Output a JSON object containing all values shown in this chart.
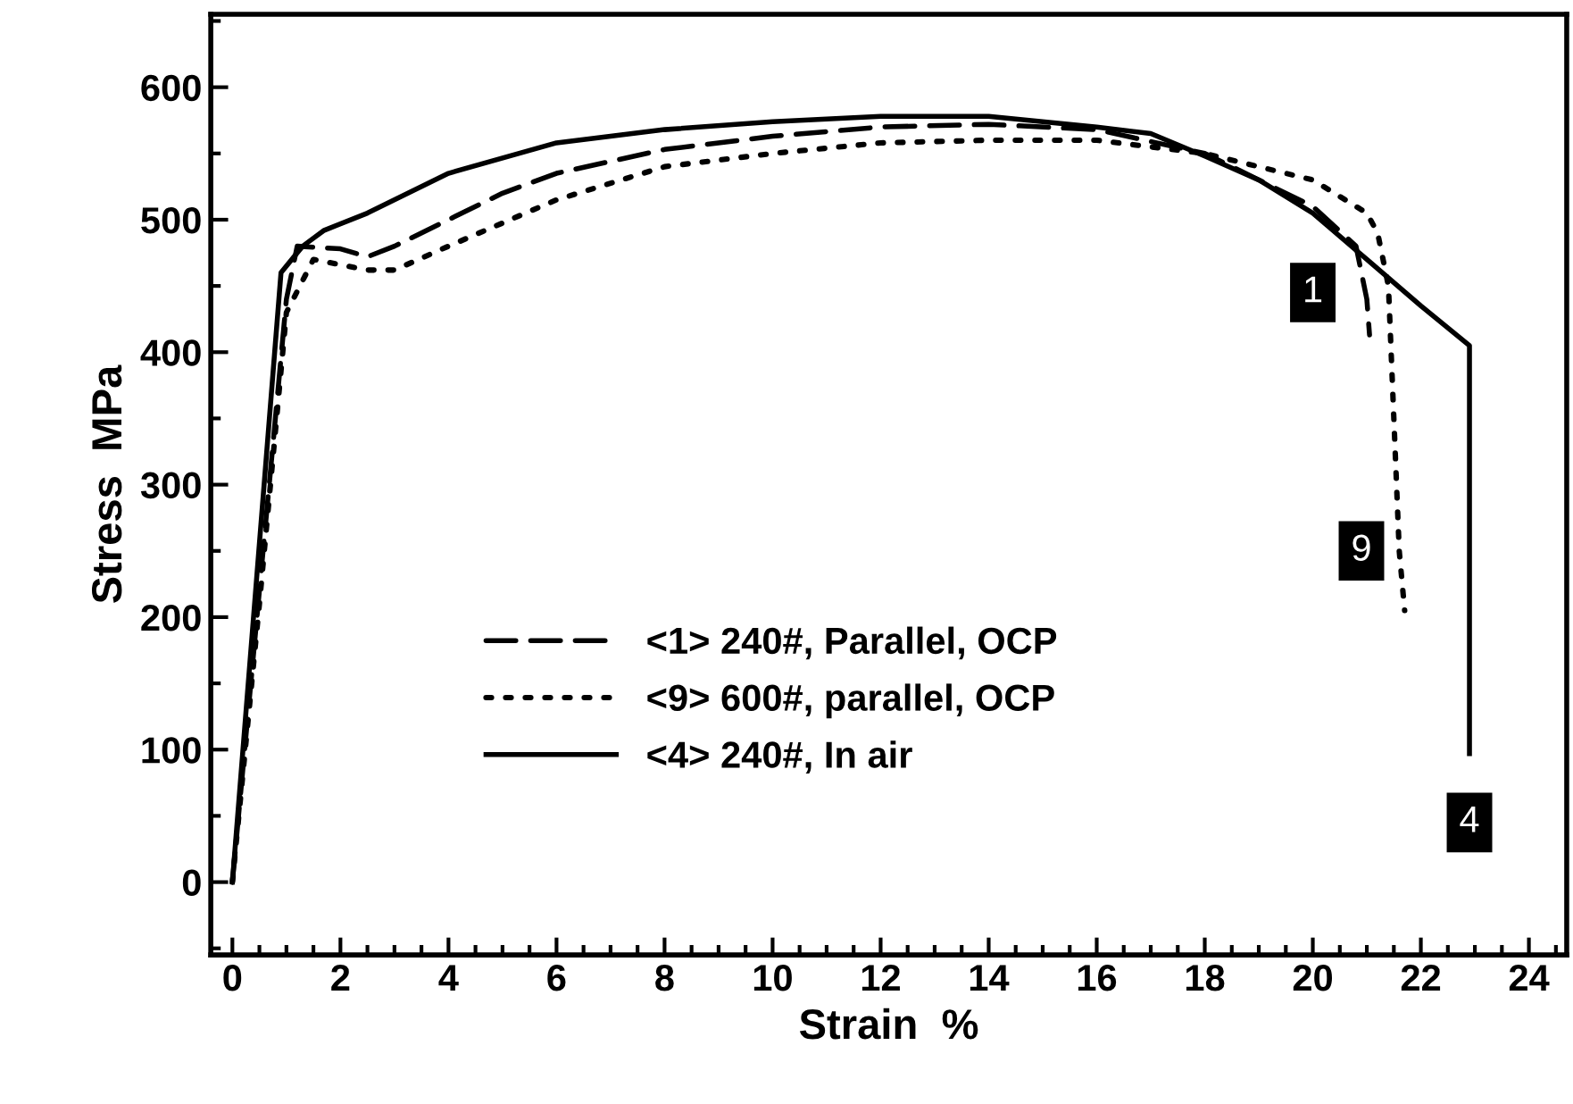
{
  "chart_data": {
    "type": "line",
    "xlabel": "Strain  %",
    "ylabel": "Stress  MPa",
    "xlim": [
      -0.4,
      24.7
    ],
    "xticks": [
      0,
      2,
      4,
      6,
      8,
      10,
      12,
      14,
      16,
      18,
      20,
      22,
      24
    ],
    "ylim": [
      -55,
      655
    ],
    "yticks": [
      0,
      100,
      200,
      300,
      400,
      500,
      600
    ],
    "grid": false,
    "legend": "center left",
    "marker": "none",
    "series": [
      {
        "name": "<1> 240#, Parallel, OCP",
        "color": "#000000",
        "line_style": "dashed",
        "x": [
          0,
          0.5,
          1,
          1.2,
          2,
          2.5,
          3,
          4,
          5,
          6,
          8,
          10,
          12,
          14,
          16,
          18,
          20,
          20.8,
          21,
          21.05
        ],
        "values": [
          0,
          220,
          440,
          480,
          478,
          472,
          480,
          500,
          520,
          535,
          553,
          563,
          570,
          572,
          568,
          550,
          510,
          480,
          440,
          413
        ]
      },
      {
        "name": "<9> 600#, parallel, OCP",
        "color": "#000000",
        "line_style": "dotted",
        "x": [
          0,
          0.5,
          1,
          1.5,
          2.5,
          3,
          4,
          6,
          8,
          10,
          12,
          14,
          16,
          18,
          19,
          20,
          21,
          21.2,
          21.4,
          21.5,
          21.6,
          21.7
        ],
        "values": [
          0,
          210,
          430,
          470,
          462,
          462,
          480,
          515,
          540,
          550,
          558,
          560,
          560,
          550,
          540,
          530,
          505,
          490,
          450,
          350,
          250,
          205
        ]
      },
      {
        "name": "<4> 240#, In air",
        "color": "#000000",
        "line_style": "solid",
        "x": [
          0,
          0.9,
          1.3,
          1.7,
          2.5,
          4,
          6,
          8,
          10,
          12,
          14,
          16,
          17,
          18,
          19,
          20,
          21,
          22,
          22.9,
          22.9
        ],
        "values": [
          0,
          460,
          480,
          492,
          505,
          535,
          558,
          568,
          574,
          578,
          578,
          570,
          565,
          548,
          530,
          505,
          470,
          435,
          405,
          97
        ]
      }
    ],
    "annotations": [
      {
        "text": "1",
        "x": 20.0,
        "y": 445
      },
      {
        "text": "9",
        "x": 20.9,
        "y": 250
      },
      {
        "text": "4",
        "x": 22.9,
        "y": 45
      }
    ]
  }
}
